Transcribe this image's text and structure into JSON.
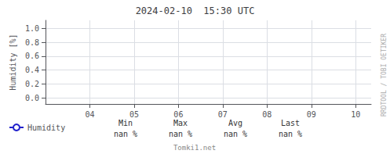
{
  "chart_data": {
    "type": "line",
    "title": "2024-02-10  15:30 UTC",
    "y_label": "Humidity [%]",
    "x": [],
    "series": [
      {
        "name": "Humidity",
        "color": "#2222cc",
        "values": []
      }
    ],
    "xlim": [
      3.0,
      10.35
    ],
    "xticks": [
      {
        "value": 4,
        "label": "04"
      },
      {
        "value": 5,
        "label": "05"
      },
      {
        "value": 6,
        "label": "06"
      },
      {
        "value": 7,
        "label": "07"
      },
      {
        "value": 8,
        "label": "08"
      },
      {
        "value": 9,
        "label": "09"
      },
      {
        "value": 10,
        "label": "10"
      }
    ],
    "ylim": [
      -0.09,
      1.12
    ],
    "yticks": [
      {
        "value": 0.0,
        "label": "0.0"
      },
      0.2,
      0.4,
      0.6,
      0.8,
      {
        "value": 1.0,
        "label": "1.0"
      }
    ],
    "grid": true,
    "legend": "bottom",
    "annotations": [
      {
        "text": "RRDTOOL / TOBI OETIKER"
      },
      {
        "text": "Tomki1.net"
      },
      {
        "label": "Min",
        "text": "nan %"
      },
      {
        "label": "Max",
        "text": "nan %"
      },
      {
        "label": "Avg",
        "text": "nan %"
      },
      {
        "label": "Last",
        "text": "nan %"
      }
    ]
  }
}
